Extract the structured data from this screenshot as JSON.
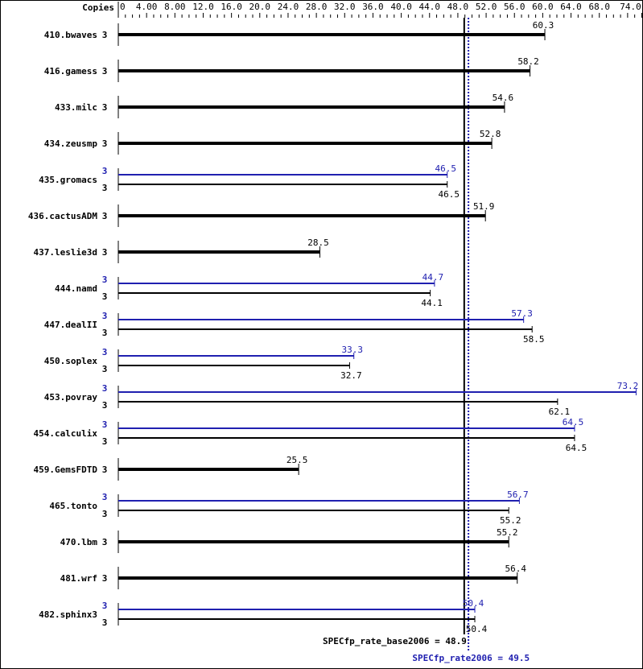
{
  "chart_data": {
    "type": "bar",
    "orientation": "horizontal",
    "copies_header": "Copies",
    "xlim": [
      0,
      74
    ],
    "ticks": [
      "0",
      "4.00",
      "8.00",
      "12.0",
      "16.0",
      "20.0",
      "24.0",
      "28.0",
      "32.0",
      "36.0",
      "40.0",
      "44.0",
      "48.0",
      "52.0",
      "56.0",
      "60.0",
      "64.0",
      "68.0",
      "74.0"
    ],
    "tick_values": [
      0,
      4,
      8,
      12,
      16,
      20,
      24,
      28,
      32,
      36,
      40,
      44,
      48,
      52,
      56,
      60,
      64,
      68,
      74
    ],
    "colors": {
      "base": "#000000",
      "peak": "#2020b0"
    },
    "benchmarks": [
      {
        "name": "410.bwaves",
        "copies": "3",
        "base": 60.3,
        "base_label": "60.3"
      },
      {
        "name": "416.gamess",
        "copies": "3",
        "base": 58.2,
        "base_label": "58.2"
      },
      {
        "name": "433.milc",
        "copies": "3",
        "base": 54.6,
        "base_label": "54.6"
      },
      {
        "name": "434.zeusmp",
        "copies": "3",
        "base": 52.8,
        "base_label": "52.8"
      },
      {
        "name": "435.gromacs",
        "copies": "3",
        "peak_copies": "3",
        "base": 46.5,
        "base_label": "46.5",
        "peak": 46.5,
        "peak_label": "46.5"
      },
      {
        "name": "436.cactusADM",
        "copies": "3",
        "base": 51.9,
        "base_label": "51.9"
      },
      {
        "name": "437.leslie3d",
        "copies": "3",
        "base": 28.5,
        "base_label": "28.5"
      },
      {
        "name": "444.namd",
        "copies": "3",
        "peak_copies": "3",
        "base": 44.1,
        "base_label": "44.1",
        "peak": 44.7,
        "peak_label": "44.7"
      },
      {
        "name": "447.dealII",
        "copies": "3",
        "peak_copies": "3",
        "base": 58.5,
        "base_label": "58.5",
        "peak": 57.3,
        "peak_label": "57.3"
      },
      {
        "name": "450.soplex",
        "copies": "3",
        "peak_copies": "3",
        "base": 32.7,
        "base_label": "32.7",
        "peak": 33.3,
        "peak_label": "33.3"
      },
      {
        "name": "453.povray",
        "copies": "3",
        "peak_copies": "3",
        "base": 62.1,
        "base_label": "62.1",
        "peak": 73.2,
        "peak_label": "73.2"
      },
      {
        "name": "454.calculix",
        "copies": "3",
        "peak_copies": "3",
        "base": 64.5,
        "base_label": "64.5",
        "peak": 64.5,
        "peak_label": "64.5"
      },
      {
        "name": "459.GemsFDTD",
        "copies": "3",
        "base": 25.5,
        "base_label": "25.5"
      },
      {
        "name": "465.tonto",
        "copies": "3",
        "peak_copies": "3",
        "base": 55.2,
        "base_label": "55.2",
        "peak": 56.7,
        "peak_label": "56.7"
      },
      {
        "name": "470.lbm",
        "copies": "3",
        "base": 55.2,
        "base_label": "55.2"
      },
      {
        "name": "481.wrf",
        "copies": "3",
        "base": 56.4,
        "base_label": "56.4"
      },
      {
        "name": "482.sphinx3",
        "copies": "3",
        "peak_copies": "3",
        "base": 50.4,
        "base_label": "50.4",
        "peak": 50.4,
        "peak_label": "50.4"
      }
    ],
    "base_mean": 48.9,
    "peak_mean": 49.5,
    "base_mean_label": "SPECfp_rate_base2006 = 48.9",
    "peak_mean_label": "SPECfp_rate2006 = 49.5"
  }
}
